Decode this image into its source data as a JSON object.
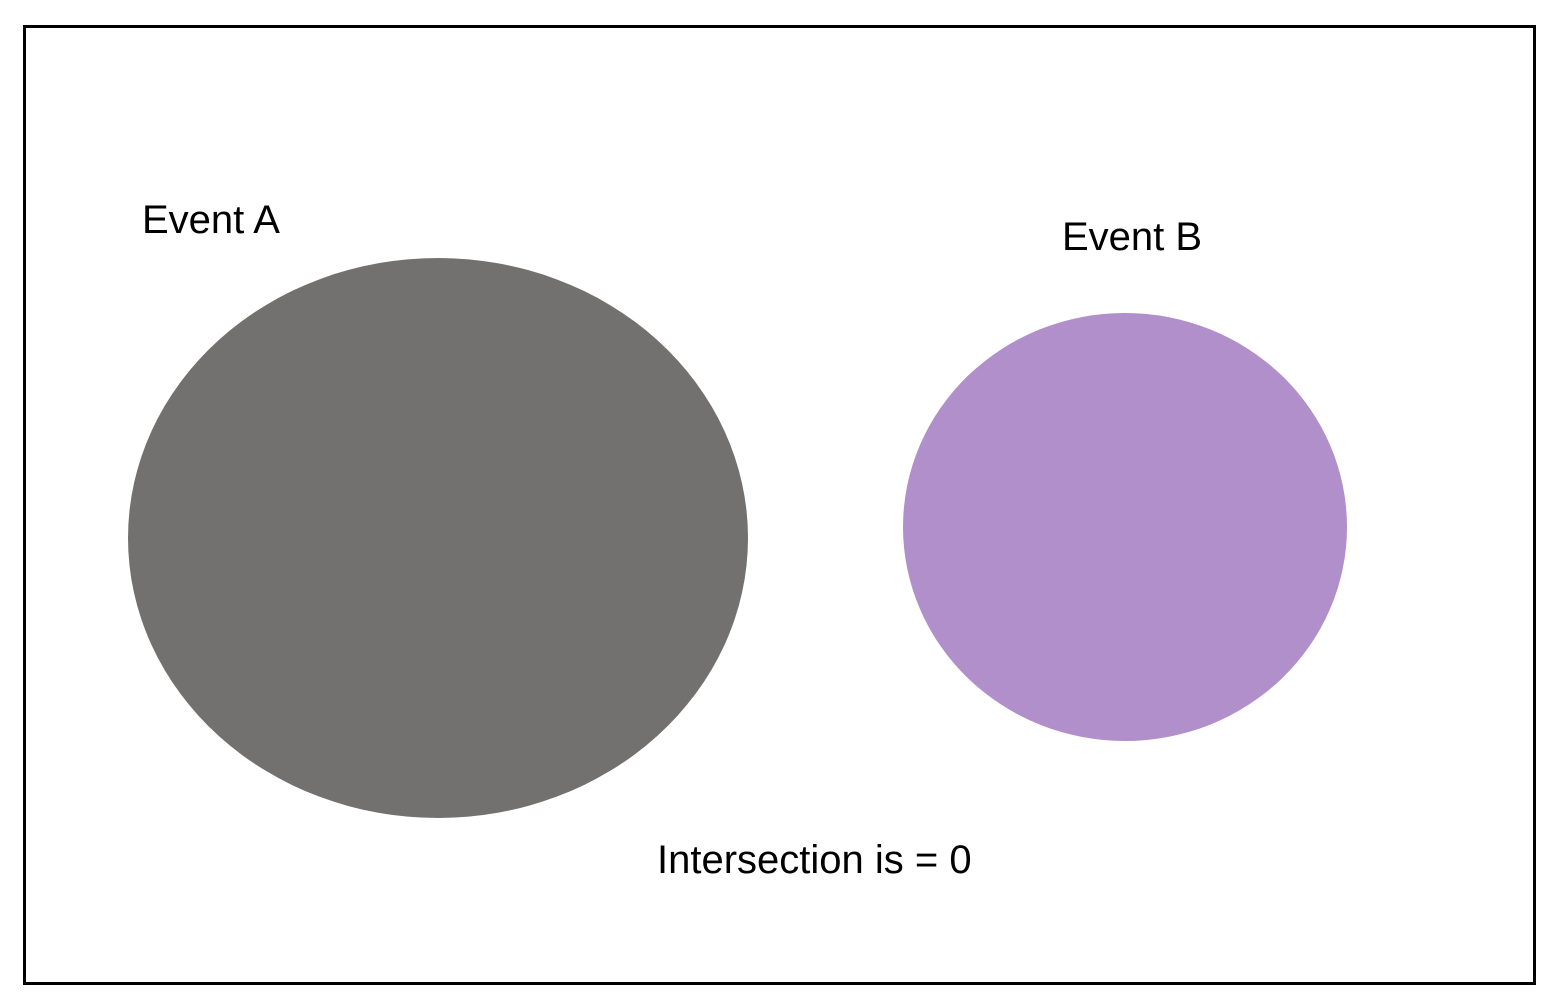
{
  "diagram": {
    "events": [
      {
        "label": "Event A",
        "color": "#72716f"
      },
      {
        "label": "Event B",
        "color": "#b08fcb"
      }
    ],
    "caption": "Intersection is = 0",
    "border_color": "#000000",
    "background": "#ffffff"
  }
}
